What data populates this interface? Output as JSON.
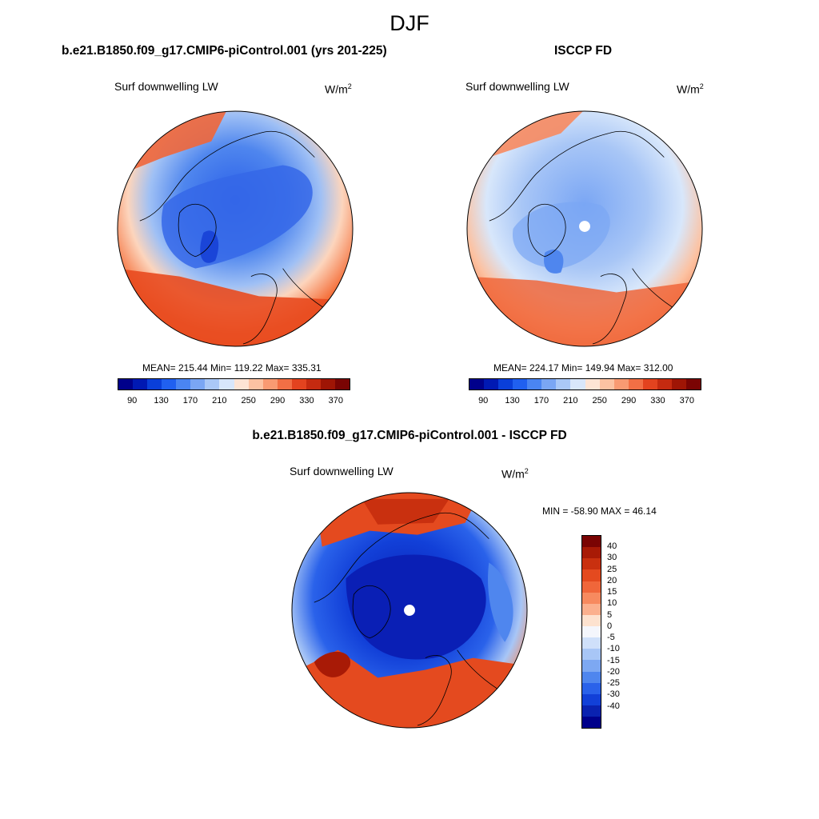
{
  "chart_data": [
    {
      "type": "heatmap",
      "projection": "north-polar-stereographic",
      "title": "b.e21.B1850.f09_g17.CMIP6-piControl.001 (yrs 201-225)",
      "variable_label": "Surf downwelling LW",
      "units": "W/m",
      "units_exp": "2",
      "stats": "MEAN= 215.44  Min= 119.22  Max= 335.31",
      "mean": 215.44,
      "min": 119.22,
      "max": 335.31,
      "colorbar": {
        "ticks": [
          "90",
          "130",
          "170",
          "210",
          "250",
          "290",
          "330",
          "370"
        ],
        "colors": [
          "#00008b",
          "#0019b3",
          "#0a3fd9",
          "#2060f0",
          "#4a85f2",
          "#7aa6f4",
          "#aac8f7",
          "#d8e7fb",
          "#fde4d4",
          "#fcc2a2",
          "#f99a72",
          "#f26f45",
          "#e3431f",
          "#c52a10",
          "#9f1505",
          "#7a0403"
        ]
      }
    },
    {
      "type": "heatmap",
      "projection": "north-polar-stereographic",
      "title": "ISCCP FD",
      "variable_label": "Surf downwelling LW",
      "units": "W/m",
      "units_exp": "2",
      "stats": "MEAN= 224.17  Min= 149.94  Max= 312.00",
      "mean": 224.17,
      "min": 149.94,
      "max": 312.0,
      "colorbar": {
        "ticks": [
          "90",
          "130",
          "170",
          "210",
          "250",
          "290",
          "330",
          "370"
        ],
        "colors": [
          "#00008b",
          "#0019b3",
          "#0a3fd9",
          "#2060f0",
          "#4a85f2",
          "#7aa6f4",
          "#aac8f7",
          "#d8e7fb",
          "#fde4d4",
          "#fcc2a2",
          "#f99a72",
          "#f26f45",
          "#e3431f",
          "#c52a10",
          "#9f1505",
          "#7a0403"
        ]
      }
    },
    {
      "type": "heatmap",
      "projection": "north-polar-stereographic",
      "title": "b.e21.B1850.f09_g17.CMIP6-piControl.001 - ISCCP FD",
      "variable_label": "Surf downwelling LW",
      "units": "W/m",
      "units_exp": "2",
      "stats": "MIN = -58.90 MAX =  46.14",
      "min": -58.9,
      "max": 46.14,
      "colorbar": {
        "ticks": [
          "40",
          "30",
          "25",
          "20",
          "15",
          "10",
          "5",
          "0",
          "-5",
          "-10",
          "-15",
          "-20",
          "-25",
          "-30",
          "-40"
        ],
        "colors": [
          "#7a0403",
          "#a81a06",
          "#c9300f",
          "#e44a1f",
          "#f0663a",
          "#f78a5f",
          "#fbb08e",
          "#fde2cf",
          "#f4f6fc",
          "#cfe0fa",
          "#a8c6f6",
          "#7da8f2",
          "#4f86ee",
          "#2a62ea",
          "#1240d8",
          "#0a22b0",
          "#00008b"
        ]
      }
    }
  ],
  "header": {
    "season": "DJF"
  }
}
